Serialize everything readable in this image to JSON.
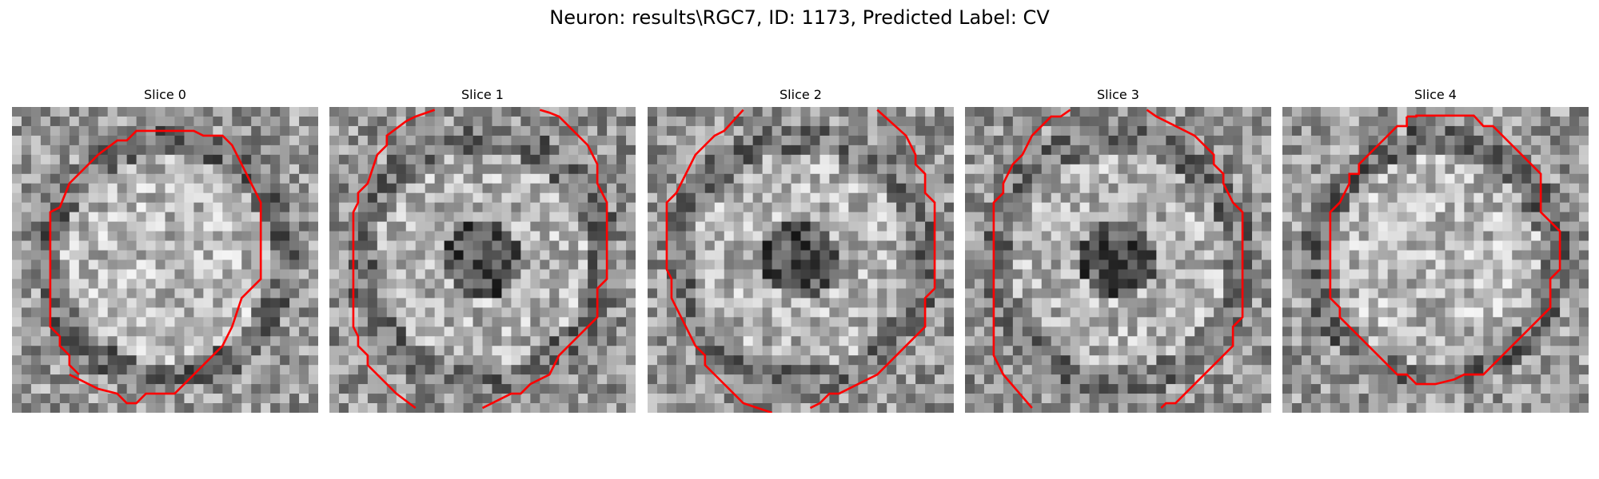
{
  "figure": {
    "title": "Neuron: results\\RGC7, ID: 1173, Predicted Label: CV"
  },
  "panels": [
    {
      "title": "Slice 0",
      "contour_color": "#ff0000",
      "image_colormap": "grayscale"
    },
    {
      "title": "Slice 1",
      "contour_color": "#ff0000",
      "image_colormap": "grayscale"
    },
    {
      "title": "Slice 2",
      "contour_color": "#ff0000",
      "image_colormap": "grayscale"
    },
    {
      "title": "Slice 3",
      "contour_color": "#ff0000",
      "image_colormap": "grayscale"
    },
    {
      "title": "Slice 4",
      "contour_color": "#ff0000",
      "image_colormap": "grayscale"
    }
  ]
}
